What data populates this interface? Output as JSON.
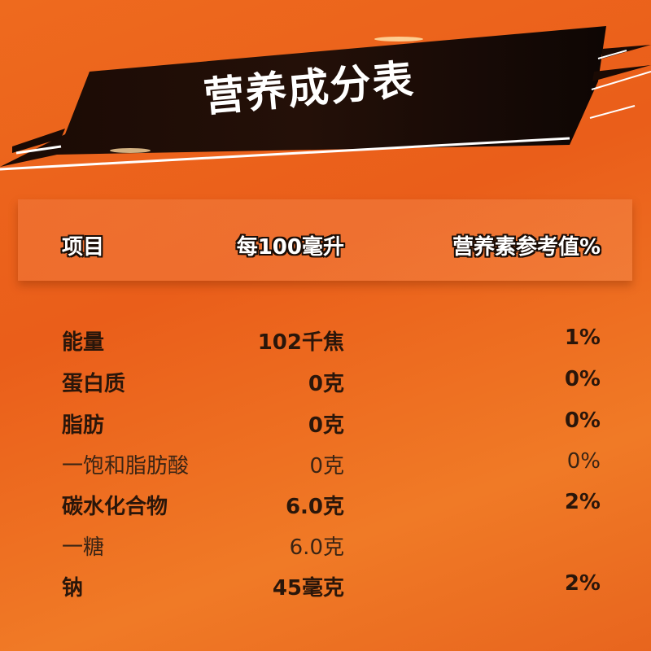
{
  "title": "营养成分表",
  "headers": {
    "item": "项目",
    "per100": "每100毫升",
    "nrv": "营养素参考值%"
  },
  "rows": [
    {
      "name": "能量",
      "value": "102千焦",
      "nrv": "1%",
      "bold": true
    },
    {
      "name": "蛋白质",
      "value": "0克",
      "nrv": "0%",
      "bold": true
    },
    {
      "name": "脂肪",
      "value": "0克",
      "nrv": "0%",
      "bold": true
    },
    {
      "name": "一饱和脂肪酸",
      "value": "0克",
      "nrv": "0%",
      "bold": false
    },
    {
      "name": "碳水化合物",
      "value": "6.0克",
      "nrv": "2%",
      "bold": true
    },
    {
      "name": "一糖",
      "value": "6.0克",
      "nrv": "",
      "bold": false
    },
    {
      "name": "钠",
      "value": "45毫克",
      "nrv": "2%",
      "bold": true
    }
  ],
  "colors": {
    "background": "#ea5e1a",
    "banner": "#120805",
    "text": "#2a160a"
  }
}
